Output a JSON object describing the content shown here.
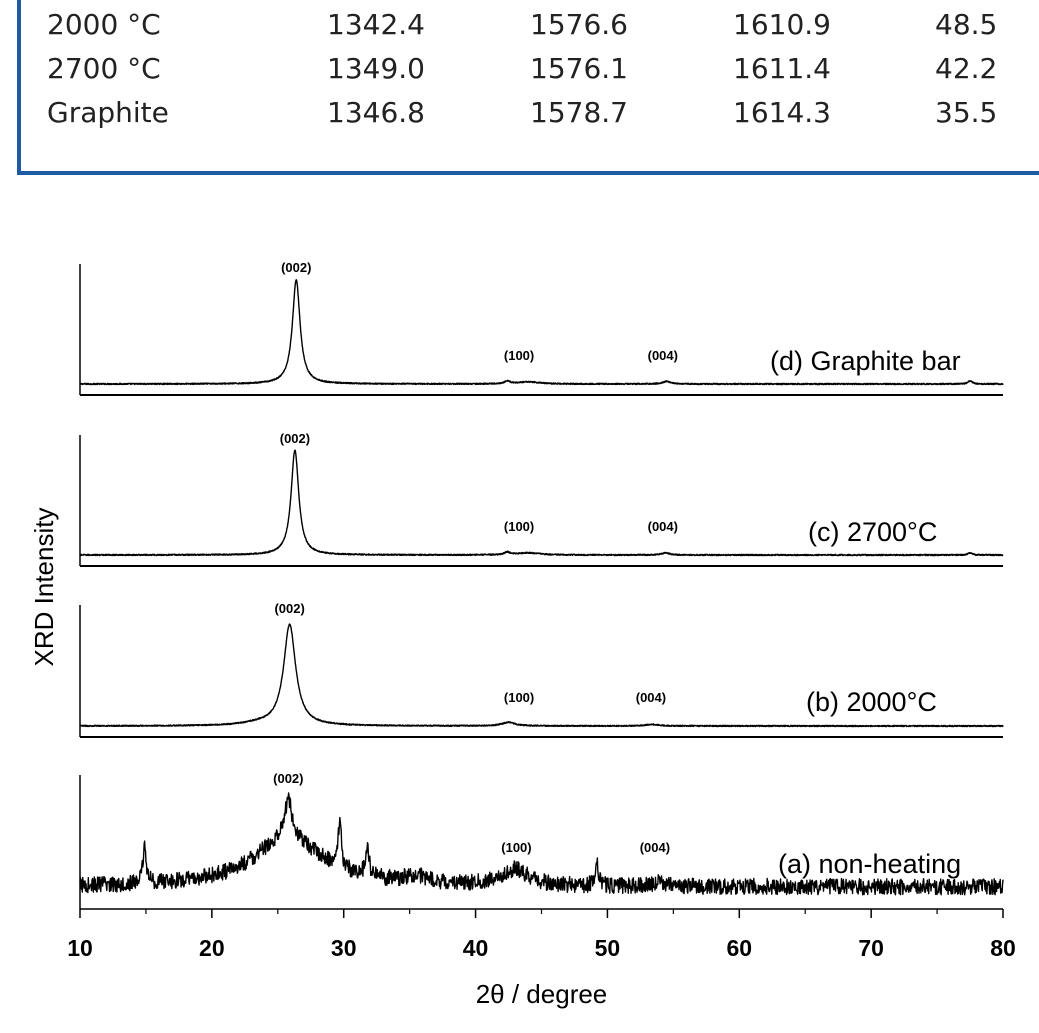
{
  "table": {
    "rows": [
      [
        "2000 °C",
        "1342.4",
        "1576.6",
        "1610.9",
        "48.5"
      ],
      [
        "2700 °C",
        "1349.0",
        "1576.1",
        "1611.4",
        "42.2"
      ],
      [
        "Graphite",
        "1346.8",
        "1578.7",
        "1614.3",
        "35.5"
      ]
    ]
  },
  "chart_data": {
    "type": "line",
    "xlabel": "2θ / degree",
    "ylabel": "XRD Intensity",
    "xlim": [
      10,
      80
    ],
    "xticks": [
      "10",
      "20",
      "30",
      "40",
      "50",
      "60",
      "70",
      "80"
    ],
    "grid": false,
    "series": [
      {
        "name": "(d) Graphite bar",
        "noise": 0.006,
        "peaks": [
          {
            "x": 26.4,
            "height": 1.0,
            "width": 0.35
          },
          {
            "x": 42.4,
            "height": 0.025,
            "width": 0.25
          },
          {
            "x": 44.0,
            "height": 0.02,
            "width": 1.0
          },
          {
            "x": 54.5,
            "height": 0.025,
            "width": 0.35
          },
          {
            "x": 77.5,
            "height": 0.03,
            "width": 0.2
          }
        ],
        "peak_labels": [
          {
            "x": 26.4,
            "text": "(002)"
          },
          {
            "x": 43.3,
            "text": "(100)"
          },
          {
            "x": 54.2,
            "text": "(004)"
          }
        ]
      },
      {
        "name": "(c) 2700°C",
        "noise": 0.006,
        "peaks": [
          {
            "x": 26.3,
            "height": 1.0,
            "width": 0.35
          },
          {
            "x": 42.4,
            "height": 0.025,
            "width": 0.25
          },
          {
            "x": 44.0,
            "height": 0.02,
            "width": 1.0
          },
          {
            "x": 54.4,
            "height": 0.02,
            "width": 0.35
          },
          {
            "x": 77.5,
            "height": 0.02,
            "width": 0.2
          }
        ],
        "peak_labels": [
          {
            "x": 26.3,
            "text": "(002)"
          },
          {
            "x": 43.3,
            "text": "(100)"
          },
          {
            "x": 54.2,
            "text": "(004)"
          }
        ]
      },
      {
        "name": "(b) 2000°C",
        "noise": 0.006,
        "peaks": [
          {
            "x": 25.9,
            "height": 1.0,
            "width": 0.55
          },
          {
            "x": 23.5,
            "height": 0.02,
            "width": 1.5
          },
          {
            "x": 42.5,
            "height": 0.035,
            "width": 0.6
          },
          {
            "x": 53.4,
            "height": 0.015,
            "width": 0.6
          }
        ],
        "peak_labels": [
          {
            "x": 25.9,
            "text": "(002)"
          },
          {
            "x": 43.3,
            "text": "(100)"
          },
          {
            "x": 53.3,
            "text": "(004)"
          }
        ]
      },
      {
        "name": "(a) non-heating",
        "noise": 0.09,
        "peaks": [
          {
            "x": 25.8,
            "height": 0.55,
            "width": 3.2
          },
          {
            "x": 25.8,
            "height": 0.45,
            "width": 0.3
          },
          {
            "x": 14.9,
            "height": 0.42,
            "width": 0.15
          },
          {
            "x": 29.7,
            "height": 0.5,
            "width": 0.15
          },
          {
            "x": 31.8,
            "height": 0.35,
            "width": 0.15
          },
          {
            "x": 43.0,
            "height": 0.18,
            "width": 1.2
          },
          {
            "x": 49.2,
            "height": 0.25,
            "width": 0.15
          },
          {
            "x": 35.5,
            "height": 0.08,
            "width": 1.0
          },
          {
            "x": 54.0,
            "height": 0.05,
            "width": 0.5
          }
        ],
        "peak_labels": [
          {
            "x": 25.8,
            "text": "(002)"
          },
          {
            "x": 43.1,
            "text": "(100)"
          },
          {
            "x": 53.6,
            "text": "(004)"
          }
        ]
      }
    ]
  }
}
